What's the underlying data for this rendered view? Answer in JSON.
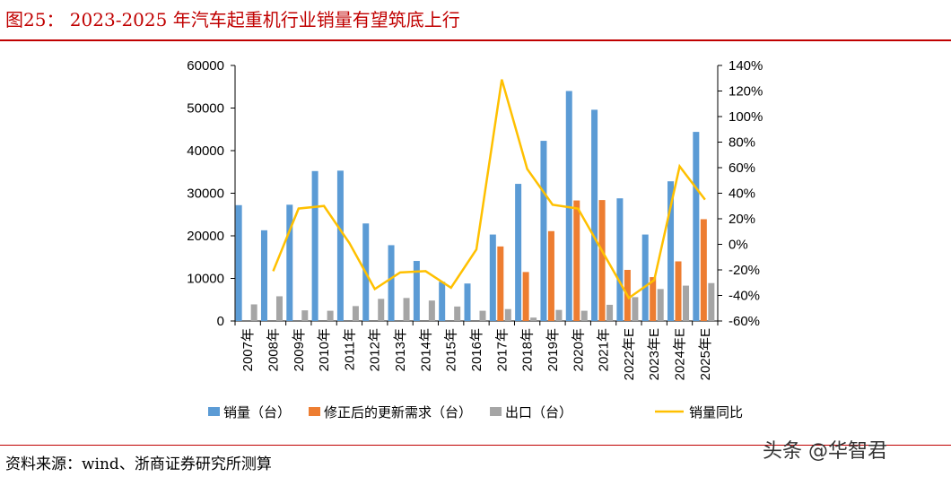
{
  "title": "图25： 2023-2025 年汽车起重机行业销量有望筑底上行",
  "source": "资料来源：wind、浙商证券研究所测算",
  "watermark": "头条 @华智君",
  "colors": {
    "sales": "#5b9bd5",
    "renewal": "#ed7d31",
    "export": "#a5a5a5",
    "yoy": "#ffc000"
  },
  "chart_data": {
    "type": "bar",
    "title": "2023-2025 年汽车起重机行业销量有望筑底上行",
    "categories": [
      "2007年",
      "2008年",
      "2009年",
      "2010年",
      "2011年",
      "2012年",
      "2013年",
      "2014年",
      "2015年",
      "2016年",
      "2017年",
      "2018年",
      "2019年",
      "2020年",
      "2021年",
      "2022年E",
      "2023年E",
      "2024年E",
      "2025年E"
    ],
    "ylim": [
      0,
      60000
    ],
    "yticks": [
      0,
      10000,
      20000,
      30000,
      40000,
      50000,
      60000
    ],
    "y2lim": [
      -60,
      140
    ],
    "y2ticks": [
      "-60%",
      "-40%",
      "-20%",
      "0%",
      "20%",
      "40%",
      "60%",
      "80%",
      "100%",
      "120%",
      "140%"
    ],
    "legend_position": "bottom",
    "series": [
      {
        "name": "销量（台）",
        "type": "bar",
        "axis": "left",
        "values": [
          27200,
          21300,
          27300,
          35200,
          35300,
          22900,
          17800,
          14100,
          9200,
          8800,
          20300,
          32200,
          42300,
          54000,
          49600,
          28800,
          20300,
          32800,
          44400
        ]
      },
      {
        "name": "修正后的更新需求（台）",
        "type": "bar",
        "axis": "left",
        "values": [
          null,
          null,
          null,
          null,
          null,
          null,
          null,
          null,
          null,
          null,
          17500,
          11500,
          21100,
          28300,
          28400,
          12000,
          10300,
          14000,
          23900
        ]
      },
      {
        "name": "出口（台）",
        "type": "bar",
        "axis": "left",
        "values": [
          3900,
          5800,
          2500,
          2400,
          3500,
          5200,
          5400,
          4800,
          3400,
          2400,
          2800,
          800,
          2600,
          2400,
          3800,
          5600,
          7500,
          8300,
          8900
        ]
      },
      {
        "name": "销量同比",
        "type": "line",
        "axis": "right",
        "unit": "%",
        "values": [
          null,
          -21,
          28,
          30,
          1,
          -35,
          -22,
          -21,
          -34,
          -4,
          129,
          59,
          31,
          28,
          -7,
          -42,
          -28,
          61,
          35
        ]
      }
    ]
  }
}
